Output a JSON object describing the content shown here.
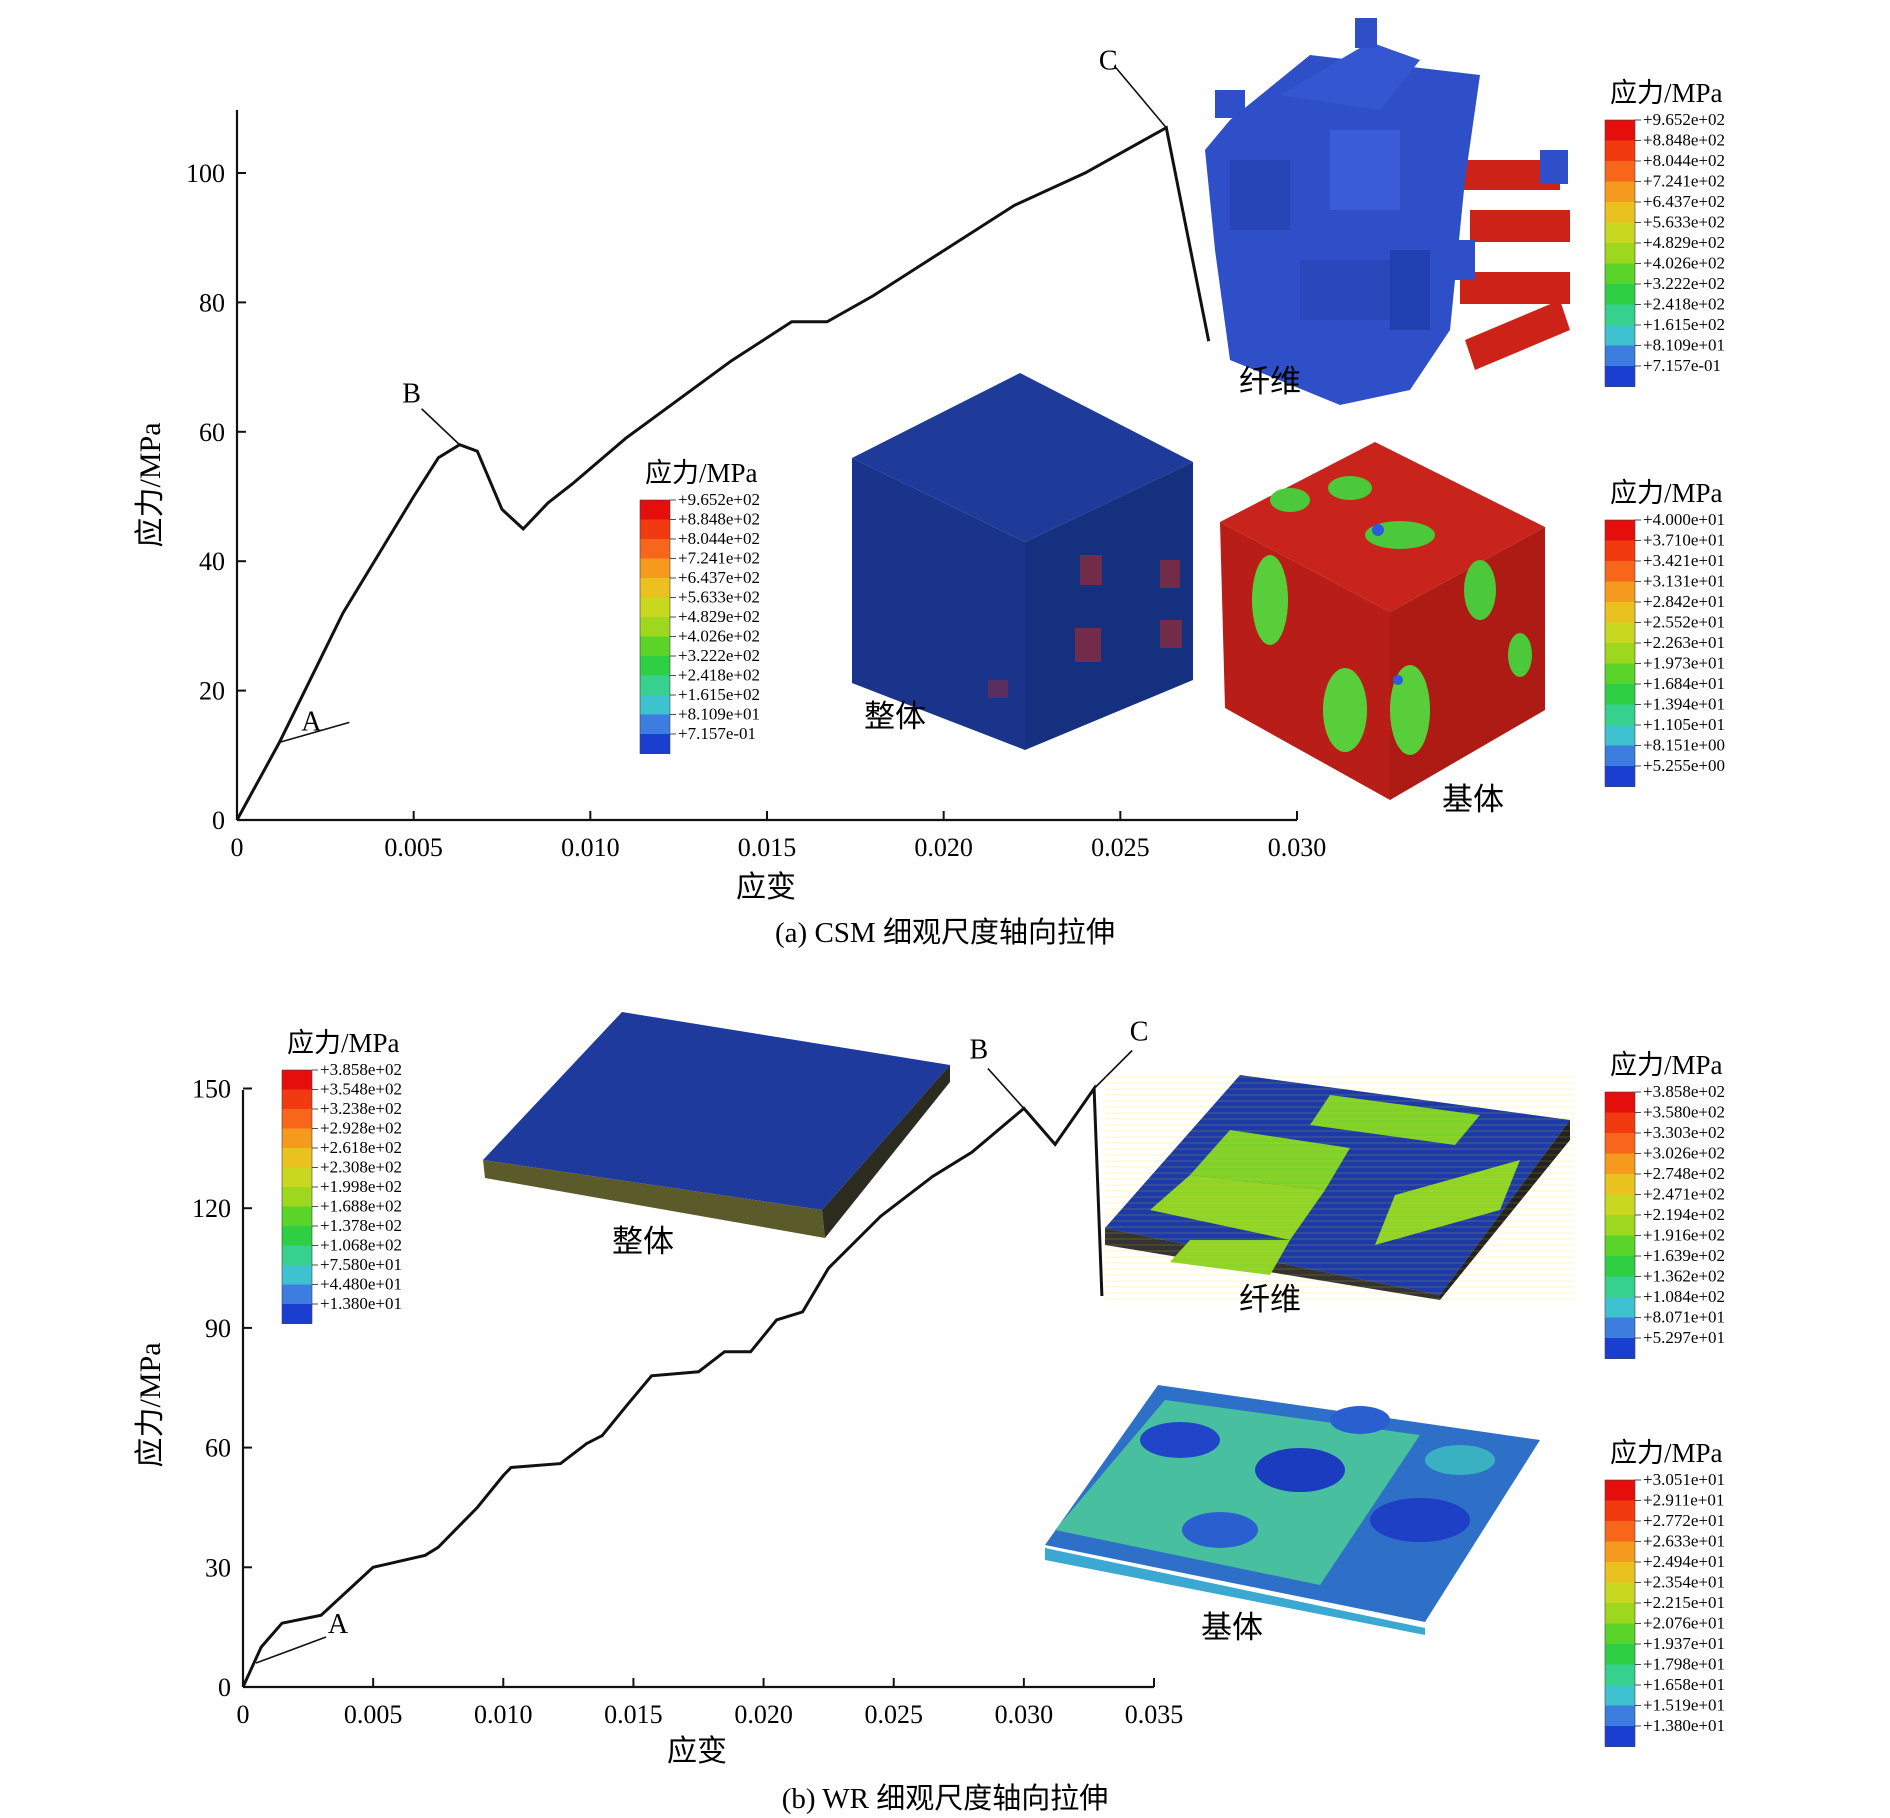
{
  "chart_data": [
    {
      "type": "line",
      "caption": "(a) CSM 细观尺度轴向拉伸",
      "xlabel": "应变",
      "ylabel": "应力/MPa",
      "xlim": [
        0,
        0.03
      ],
      "ylim": [
        0,
        110
      ],
      "x_ticks": [
        "0",
        "0.005",
        "0.010",
        "0.015",
        "0.020",
        "0.025",
        "0.030"
      ],
      "y_ticks": [
        "0",
        "20",
        "40",
        "60",
        "80",
        "100"
      ],
      "series": [
        {
          "x": [
            0,
            0.0012,
            0.003,
            0.005,
            0.0057,
            0.0063,
            0.0068,
            0.0075,
            0.0081,
            0.0088,
            0.0095,
            0.011,
            0.0125,
            0.014,
            0.0157,
            0.0167,
            0.018,
            0.02,
            0.022,
            0.024,
            0.0263,
            0.0275
          ],
          "y": [
            0,
            12,
            32,
            50,
            56,
            58,
            57,
            48,
            45,
            49,
            52,
            59,
            65,
            71,
            77,
            77,
            81,
            88,
            95,
            100,
            107,
            74
          ]
        }
      ],
      "annotations": [
        {
          "label": "A",
          "x": 0.0012,
          "y": 12
        },
        {
          "label": "B",
          "x": 0.0063,
          "y": 58
        },
        {
          "label": "C",
          "x": 0.0263,
          "y": 107
        }
      ],
      "insets": [
        {
          "label": "整体",
          "legend_title": "应力/MPa",
          "legend_values": [
            "+9.652e+02",
            "+8.848e+02",
            "+8.044e+02",
            "+7.241e+02",
            "+6.437e+02",
            "+5.633e+02",
            "+4.829e+02",
            "+4.026e+02",
            "+3.222e+02",
            "+2.418e+02",
            "+1.615e+02",
            "+8.109e+01",
            "+7.157e-01"
          ]
        },
        {
          "label": "纤维",
          "legend_title": "应力/MPa",
          "legend_values": [
            "+9.652e+02",
            "+8.848e+02",
            "+8.044e+02",
            "+7.241e+02",
            "+6.437e+02",
            "+5.633e+02",
            "+4.829e+02",
            "+4.026e+02",
            "+3.222e+02",
            "+2.418e+02",
            "+1.615e+02",
            "+8.109e+01",
            "+7.157e-01"
          ]
        },
        {
          "label": "基体",
          "legend_title": "应力/MPa",
          "legend_values": [
            "+4.000e+01",
            "+3.710e+01",
            "+3.421e+01",
            "+3.131e+01",
            "+2.842e+01",
            "+2.552e+01",
            "+2.263e+01",
            "+1.973e+01",
            "+1.684e+01",
            "+1.394e+01",
            "+1.105e+01",
            "+8.151e+00",
            "+5.255e+00"
          ]
        }
      ]
    },
    {
      "type": "line",
      "caption": "(b) WR 细观尺度轴向拉伸",
      "xlabel": "应变",
      "ylabel": "应力/MPa",
      "xlim": [
        0,
        0.035
      ],
      "ylim": [
        0,
        150
      ],
      "x_ticks": [
        "0",
        "0.005",
        "0.010",
        "0.015",
        "0.020",
        "0.025",
        "0.030",
        "0.035"
      ],
      "y_ticks": [
        "0",
        "30",
        "60",
        "90",
        "120",
        "150"
      ],
      "series": [
        {
          "x": [
            0,
            0.0007,
            0.0015,
            0.003,
            0.005,
            0.007,
            0.0075,
            0.009,
            0.01,
            0.0103,
            0.0122,
            0.0132,
            0.0138,
            0.0148,
            0.0157,
            0.0175,
            0.0185,
            0.0195,
            0.0205,
            0.0215,
            0.0225,
            0.0245,
            0.0265,
            0.028,
            0.03,
            0.0312,
            0.0327,
            0.033
          ],
          "y": [
            0,
            10,
            16,
            18,
            30,
            33,
            35,
            45,
            53,
            55,
            56,
            61,
            63,
            71,
            78,
            79,
            84,
            84,
            92,
            94,
            105,
            118,
            128,
            134,
            145,
            136,
            150,
            98
          ]
        }
      ],
      "annotations": [
        {
          "label": "A",
          "x": 0.0005,
          "y": 6
        },
        {
          "label": "B",
          "x": 0.03,
          "y": 145
        },
        {
          "label": "C",
          "x": 0.0327,
          "y": 150
        }
      ],
      "insets": [
        {
          "label": "整体",
          "legend_title": "应力/MPa",
          "legend_values": [
            "+3.858e+02",
            "+3.548e+02",
            "+3.238e+02",
            "+2.928e+02",
            "+2.618e+02",
            "+2.308e+02",
            "+1.998e+02",
            "+1.688e+02",
            "+1.378e+02",
            "+1.068e+02",
            "+7.580e+01",
            "+4.480e+01",
            "+1.380e+01"
          ]
        },
        {
          "label": "纤维",
          "legend_title": "应力/MPa",
          "legend_values": [
            "+3.858e+02",
            "+3.580e+02",
            "+3.303e+02",
            "+3.026e+02",
            "+2.748e+02",
            "+2.471e+02",
            "+2.194e+02",
            "+1.916e+02",
            "+1.639e+02",
            "+1.362e+02",
            "+1.084e+02",
            "+8.071e+01",
            "+5.297e+01"
          ]
        },
        {
          "label": "基体",
          "legend_title": "应力/MPa",
          "legend_values": [
            "+3.051e+01",
            "+2.911e+01",
            "+2.772e+01",
            "+2.633e+01",
            "+2.494e+01",
            "+2.354e+01",
            "+2.215e+01",
            "+2.076e+01",
            "+1.937e+01",
            "+1.798e+01",
            "+1.658e+01",
            "+1.519e+01",
            "+1.380e+01"
          ]
        }
      ]
    }
  ],
  "colormap": [
    "#e60d0d",
    "#f23a10",
    "#f7661a",
    "#f59a1c",
    "#e9c21f",
    "#c8d81f",
    "#9ed81e",
    "#5bd42a",
    "#2fcf44",
    "#36d08f",
    "#3fc2cf",
    "#3d7de0",
    "#1a3fd0"
  ]
}
